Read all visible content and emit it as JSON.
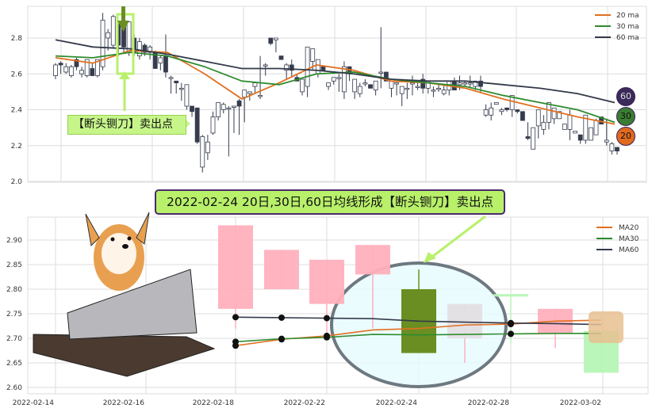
{
  "chart_data": [
    {
      "type": "candlestick",
      "ylim": [
        2.0,
        2.98
      ],
      "yticks": [
        "2.0",
        "2.2",
        "2.4",
        "2.6",
        "2.8"
      ],
      "grid": true,
      "legend_placement": "top-right",
      "legend": [
        "20 ma",
        "30 ma",
        "60 ma"
      ],
      "colors": {
        "ma20": "#e07020",
        "ma30": "#2e8b2e",
        "ma60": "#333a4a",
        "up": "#ffffff",
        "down": "#363c4e"
      },
      "candles": [
        [
          2.59,
          2.66,
          2.57,
          2.65
        ],
        [
          2.66,
          2.67,
          2.6,
          2.65
        ],
        [
          2.61,
          2.66,
          2.6,
          2.64
        ],
        [
          2.59,
          2.65,
          2.58,
          2.64
        ],
        [
          2.68,
          2.69,
          2.62,
          2.64
        ],
        [
          2.6,
          2.64,
          2.58,
          2.62
        ],
        [
          2.59,
          2.68,
          2.58,
          2.68
        ],
        [
          2.63,
          2.66,
          2.59,
          2.59
        ],
        [
          2.59,
          2.68,
          2.58,
          2.68
        ],
        [
          2.64,
          2.94,
          2.62,
          2.9
        ],
        [
          2.8,
          2.85,
          2.73,
          2.83
        ],
        [
          2.76,
          2.93,
          2.74,
          2.92
        ],
        [
          2.88,
          2.88,
          2.7,
          2.76
        ],
        [
          2.86,
          2.87,
          2.72,
          2.75
        ],
        [
          2.72,
          2.89,
          2.7,
          2.89
        ],
        [
          2.8,
          2.82,
          2.7,
          2.72
        ],
        [
          2.7,
          2.8,
          2.68,
          2.78
        ],
        [
          2.76,
          2.77,
          2.7,
          2.72
        ],
        [
          2.72,
          2.76,
          2.68,
          2.75
        ],
        [
          2.72,
          2.73,
          2.63,
          2.63
        ],
        [
          2.66,
          2.7,
          2.62,
          2.69
        ],
        [
          2.7,
          2.82,
          2.58,
          2.61
        ],
        [
          2.58,
          2.59,
          2.49,
          2.58
        ],
        [
          2.56,
          2.56,
          2.49,
          2.55
        ],
        [
          2.52,
          2.55,
          2.45,
          2.52
        ],
        [
          2.42,
          2.54,
          2.4,
          2.54
        ],
        [
          2.42,
          2.42,
          2.36,
          2.39
        ],
        [
          2.41,
          2.41,
          2.21,
          2.22
        ],
        [
          2.08,
          2.26,
          2.05,
          2.25
        ],
        [
          2.16,
          2.26,
          2.12,
          2.22
        ],
        [
          2.27,
          2.39,
          2.26,
          2.36
        ],
        [
          2.36,
          2.44,
          2.34,
          2.44
        ],
        [
          2.4,
          2.44,
          2.38,
          2.43
        ],
        [
          2.41,
          2.42,
          2.14,
          2.41
        ],
        [
          2.42,
          2.42,
          2.27,
          2.42
        ],
        [
          2.45,
          2.46,
          2.26,
          2.42
        ],
        [
          2.47,
          2.51,
          2.33,
          2.51
        ],
        [
          2.49,
          2.5,
          2.45,
          2.5
        ],
        [
          2.53,
          2.55,
          2.49,
          2.55
        ],
        [
          2.48,
          2.7,
          2.46,
          2.48
        ],
        [
          2.65,
          2.66,
          2.59,
          2.65
        ],
        [
          2.8,
          2.8,
          2.76,
          2.77
        ],
        [
          2.79,
          2.8,
          2.72,
          2.8
        ],
        [
          2.7,
          2.7,
          2.68,
          2.68
        ],
        [
          2.62,
          2.66,
          2.57,
          2.65
        ],
        [
          2.65,
          2.68,
          2.58,
          2.62
        ],
        [
          2.58,
          2.6,
          2.56,
          2.56
        ],
        [
          2.5,
          2.57,
          2.48,
          2.57
        ],
        [
          2.53,
          2.75,
          2.47,
          2.75
        ],
        [
          2.67,
          2.74,
          2.62,
          2.74
        ],
        [
          2.6,
          2.68,
          2.58,
          2.68
        ],
        [
          2.64,
          2.64,
          2.62,
          2.62
        ],
        [
          2.53,
          2.55,
          2.51,
          2.55
        ],
        [
          2.56,
          2.58,
          2.54,
          2.58
        ],
        [
          2.58,
          2.6,
          2.5,
          2.58
        ],
        [
          2.5,
          2.67,
          2.46,
          2.64
        ],
        [
          2.64,
          2.64,
          2.56,
          2.6
        ],
        [
          2.5,
          2.57,
          2.46,
          2.57
        ],
        [
          2.49,
          2.55,
          2.47,
          2.53
        ],
        [
          2.55,
          2.57,
          2.53,
          2.55
        ],
        [
          2.54,
          2.54,
          2.52,
          2.52
        ],
        [
          2.51,
          2.56,
          2.48,
          2.56
        ],
        [
          2.61,
          2.86,
          2.52,
          2.61
        ],
        [
          2.61,
          2.61,
          2.56,
          2.56
        ],
        [
          2.52,
          2.56,
          2.47,
          2.56
        ],
        [
          2.55,
          2.55,
          2.48,
          2.55
        ],
        [
          2.49,
          2.53,
          2.42,
          2.53
        ],
        [
          2.52,
          2.55,
          2.46,
          2.52
        ],
        [
          2.55,
          2.59,
          2.48,
          2.55
        ],
        [
          2.53,
          2.56,
          2.51,
          2.53
        ],
        [
          2.57,
          2.6,
          2.49,
          2.52
        ],
        [
          2.52,
          2.56,
          2.49,
          2.56
        ],
        [
          2.51,
          2.53,
          2.47,
          2.51
        ],
        [
          2.52,
          2.54,
          2.5,
          2.52
        ],
        [
          2.49,
          2.54,
          2.48,
          2.51
        ],
        [
          2.51,
          2.56,
          2.48,
          2.56
        ],
        [
          2.56,
          2.58,
          2.51,
          2.51
        ],
        [
          2.54,
          2.59,
          2.51,
          2.55
        ],
        [
          2.55,
          2.56,
          2.53,
          2.55
        ],
        [
          2.55,
          2.59,
          2.52,
          2.55
        ],
        [
          2.53,
          2.56,
          2.51,
          2.56
        ],
        [
          2.56,
          2.59,
          2.5,
          2.53
        ],
        [
          2.37,
          2.43,
          2.36,
          2.4
        ],
        [
          2.37,
          2.44,
          2.34,
          2.41
        ],
        [
          2.43,
          2.44,
          2.43,
          2.44
        ],
        [
          2.39,
          2.41,
          2.37,
          2.4
        ],
        [
          2.41,
          2.41,
          2.39,
          2.4
        ],
        [
          2.4,
          2.48,
          2.36,
          2.48
        ],
        [
          2.4,
          2.4,
          2.38,
          2.39
        ],
        [
          2.39,
          2.39,
          2.34,
          2.34
        ],
        [
          2.25,
          2.33,
          2.23,
          2.24
        ],
        [
          2.18,
          2.3,
          2.18,
          2.3
        ],
        [
          2.31,
          2.4,
          2.24,
          2.4
        ],
        [
          2.29,
          2.37,
          2.26,
          2.33
        ],
        [
          2.33,
          2.44,
          2.29,
          2.44
        ],
        [
          2.35,
          2.41,
          2.32,
          2.41
        ],
        [
          2.35,
          2.39,
          2.35,
          2.39
        ],
        [
          2.29,
          2.32,
          2.29,
          2.32
        ],
        [
          2.29,
          2.4,
          2.23,
          2.37
        ],
        [
          2.27,
          2.28,
          2.27,
          2.28
        ],
        [
          2.26,
          2.26,
          2.21,
          2.23
        ],
        [
          2.23,
          2.37,
          2.21,
          2.37
        ],
        [
          2.23,
          2.3,
          2.23,
          2.3
        ],
        [
          2.26,
          2.35,
          2.26,
          2.34
        ],
        [
          2.36,
          2.36,
          2.32,
          2.32
        ],
        [
          2.22,
          2.35,
          2.2,
          2.23
        ],
        [
          2.17,
          2.22,
          2.15,
          2.21
        ],
        [
          2.19,
          2.19,
          2.15,
          2.17
        ]
      ],
      "ma_x_samples": 16,
      "series": [
        {
          "name": "20 ma",
          "values": [
            2.69,
            2.66,
            2.73,
            2.72,
            2.6,
            2.46,
            2.55,
            2.65,
            2.62,
            2.56,
            2.55,
            2.52,
            2.46,
            2.41,
            2.36,
            2.32
          ]
        },
        {
          "name": "30 ma",
          "values": [
            2.7,
            2.69,
            2.72,
            2.7,
            2.64,
            2.56,
            2.54,
            2.6,
            2.61,
            2.57,
            2.55,
            2.53,
            2.48,
            2.44,
            2.4,
            2.33
          ]
        },
        {
          "name": "60 ma",
          "values": [
            2.79,
            2.75,
            2.74,
            2.71,
            2.67,
            2.63,
            2.63,
            2.62,
            2.6,
            2.57,
            2.56,
            2.56,
            2.54,
            2.52,
            2.49,
            2.44
          ]
        }
      ],
      "annotations": {
        "callout": "【断头铡刀】卖出点",
        "badges": [
          "60",
          "30",
          "20"
        ]
      }
    },
    {
      "type": "candlestick",
      "ylim": [
        2.59,
        2.95
      ],
      "yticks": [
        "2.60",
        "2.65",
        "2.70",
        "2.75",
        "2.80",
        "2.85",
        "2.90"
      ],
      "xticks": [
        "2022-02-14",
        "2022-02-16",
        "2022-02-18",
        "2022-02-22",
        "2022-02-24",
        "2022-02-28",
        "2022-03-02"
      ],
      "title": "2022-02-24 20日,30日,60日均线形成【断头铡刀】卖出点",
      "legend": [
        "MA20",
        "MA30",
        "MA60"
      ],
      "legend_placement": "top-right",
      "grid": true,
      "candles": [
        {
          "date": "2022-02-18",
          "open": 2.93,
          "high": 2.93,
          "low": 2.72,
          "close": 2.76,
          "color": "#ffb0bc"
        },
        {
          "date": "2022-02-21",
          "open": 2.88,
          "high": 2.88,
          "low": 2.8,
          "close": 2.8,
          "color": "#ffb0bc"
        },
        {
          "date": "2022-02-22",
          "open": 2.86,
          "high": 2.86,
          "low": 2.7,
          "close": 2.77,
          "color": "#ffb0bc"
        },
        {
          "date": "2022-02-23",
          "open": 2.89,
          "high": 2.89,
          "low": 2.72,
          "close": 2.83,
          "color": "#ffb0bc"
        },
        {
          "date": "2022-02-24",
          "open": 2.8,
          "high": 2.84,
          "low": 2.67,
          "close": 2.67,
          "color": "#6b8e23"
        },
        {
          "date": "2022-02-25",
          "open": 2.77,
          "high": 2.77,
          "low": 2.65,
          "close": 2.7,
          "color": "#e4dfe4"
        },
        {
          "date": "2022-02-28",
          "open": 2.79,
          "high": 2.79,
          "low": 2.69,
          "close": 2.785,
          "color": "#b6f5b6"
        },
        {
          "date": "2022-03-01",
          "open": 2.76,
          "high": 2.76,
          "low": 2.68,
          "close": 2.71,
          "color": "#ffb0bc"
        },
        {
          "date": "2022-03-02",
          "open": 2.715,
          "high": 2.715,
          "low": 2.63,
          "close": 2.63,
          "color": "#b6f5b6"
        }
      ],
      "series": [
        {
          "name": "MA20",
          "color": "#e07020",
          "values": [
            2.685,
            2.698,
            2.705,
            2.717,
            2.72,
            2.727,
            2.729,
            2.735,
            2.737
          ]
        },
        {
          "name": "MA30",
          "color": "#2e8b2e",
          "values": [
            2.693,
            2.699,
            2.702,
            2.708,
            2.707,
            2.708,
            2.709,
            2.71,
            2.71
          ]
        },
        {
          "name": "MA60",
          "color": "#333a4a",
          "values": [
            2.743,
            2.742,
            2.741,
            2.74,
            2.735,
            2.733,
            2.731,
            2.73,
            2.728
          ]
        }
      ]
    }
  ]
}
